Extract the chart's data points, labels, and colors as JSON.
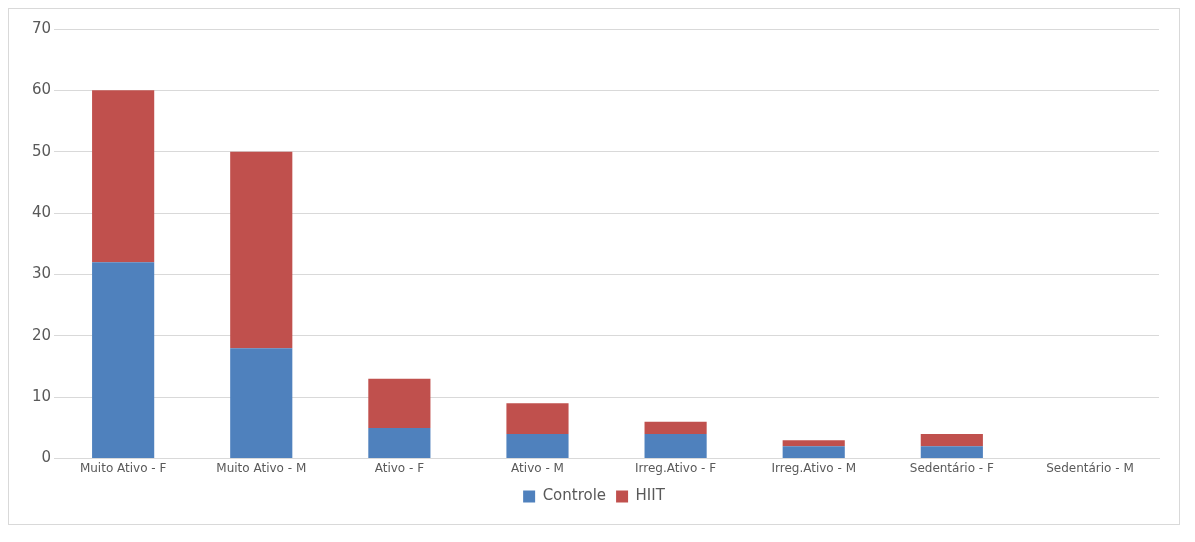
{
  "chart_data": {
    "type": "bar",
    "stacked": true,
    "categories": [
      "Muito Ativo - F",
      "Muito Ativo - M",
      "Ativo - F",
      "Ativo - M",
      "Irreg.Ativo - F",
      "Irreg.Ativo - M",
      "Sedentário - F",
      "Sedentário - M"
    ],
    "series": [
      {
        "name": "Controle",
        "color": "#4f81bd",
        "values": [
          32,
          18,
          5,
          4,
          4,
          2,
          2,
          0
        ]
      },
      {
        "name": "HIIT",
        "color": "#c0504d",
        "values": [
          28,
          32,
          8,
          5,
          2,
          1,
          2,
          0
        ]
      }
    ],
    "ylim": [
      0,
      70
    ],
    "yticks": [
      0,
      10,
      20,
      30,
      40,
      50,
      60,
      70
    ],
    "grid": "y",
    "legend": "bottom"
  }
}
